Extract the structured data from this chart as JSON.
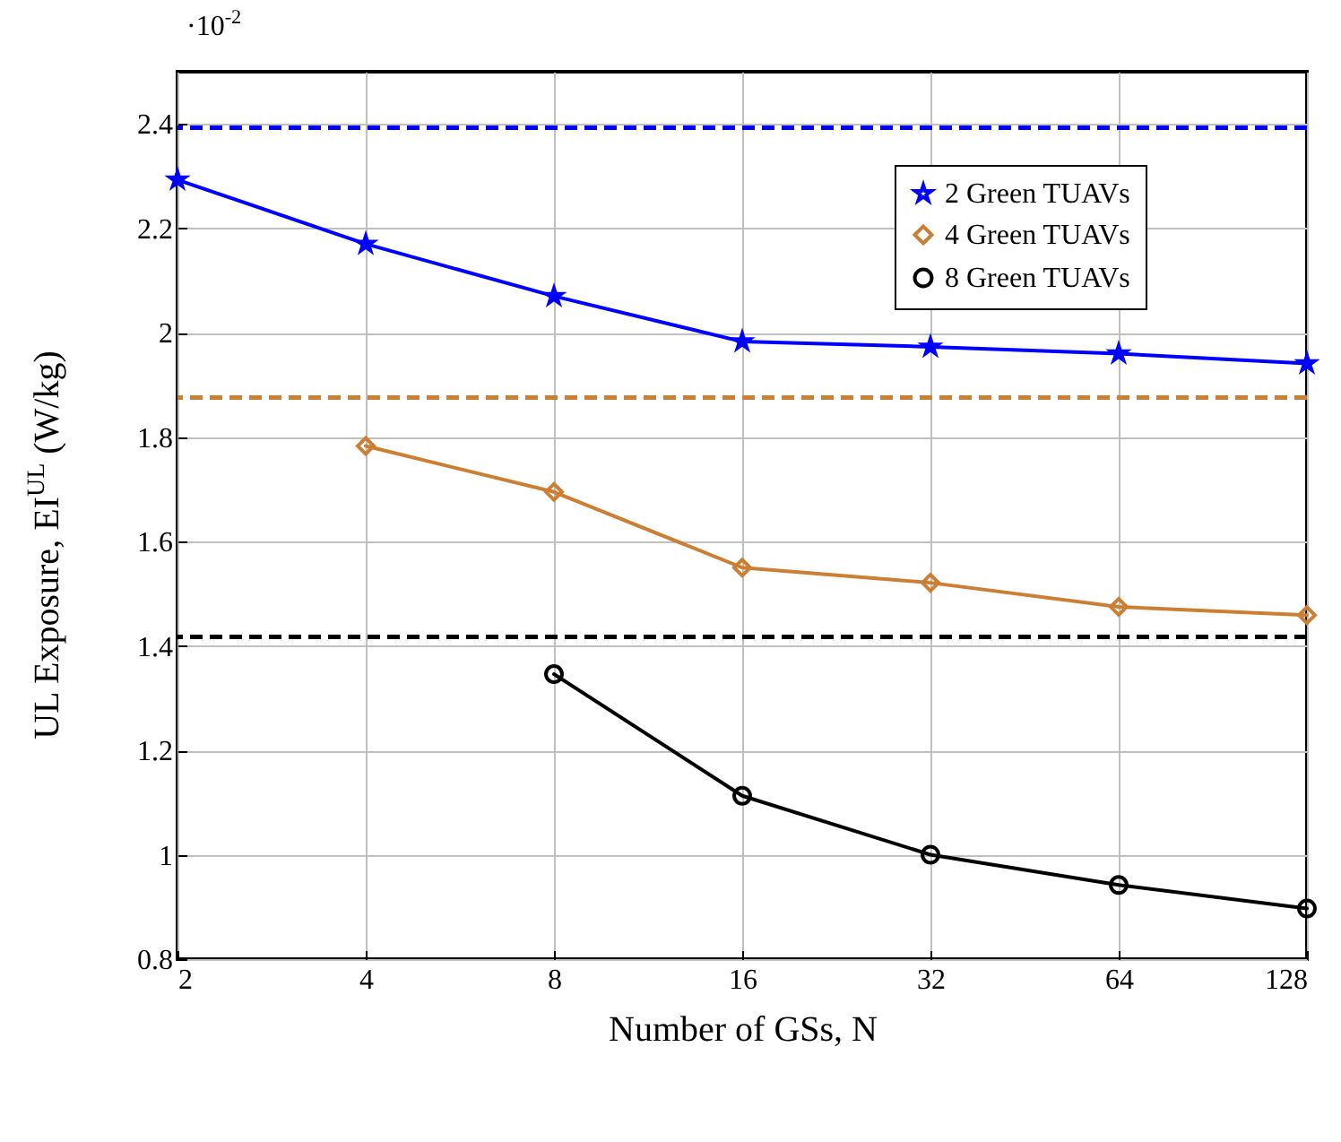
{
  "chart_data": {
    "type": "line",
    "xlabel": "Number of GSs, N",
    "ylabel": "UL Exposure, EI$^{UL}$ (W/kg)",
    "annotations": [
      "·10$^{-2}$"
    ],
    "x": [
      2,
      4,
      8,
      16,
      32,
      64,
      128
    ],
    "series": [
      {
        "name": "2 Green TUAVs",
        "color": "#0000ff",
        "marker": "star",
        "values": [
          2.293,
          2.17,
          2.07,
          1.983,
          1.973,
          1.96,
          1.941
        ]
      },
      {
        "name": "4 Green TUAVs",
        "color": "#cc7f33",
        "marker": "diamond",
        "values": [
          null,
          1.783,
          1.695,
          1.55,
          1.521,
          1.475,
          1.459
        ]
      },
      {
        "name": "8 Green TUAVs",
        "color": "#000000",
        "marker": "circle",
        "values": [
          null,
          null,
          1.346,
          1.113,
          1.0,
          0.942,
          0.897
        ]
      }
    ],
    "ref_lines": [
      {
        "axis": "y",
        "value": 2.393,
        "color": "#0000ff",
        "line_style": "dashed"
      },
      {
        "axis": "y",
        "value": 1.876,
        "color": "#cc7f33",
        "line_style": "dashed"
      },
      {
        "axis": "y",
        "value": 1.417,
        "color": "#000000",
        "line_style": "dashed"
      }
    ],
    "log": "x",
    "xlim": [
      2,
      128
    ],
    "xticks": [
      2,
      4,
      8,
      16,
      32,
      64,
      128
    ],
    "ylim": [
      0.8,
      2.5
    ],
    "yticks": [
      0.8,
      1,
      1.2,
      1.4,
      1.6,
      1.8,
      2,
      2.2,
      2.4
    ],
    "grid": true,
    "legend": "top right"
  }
}
